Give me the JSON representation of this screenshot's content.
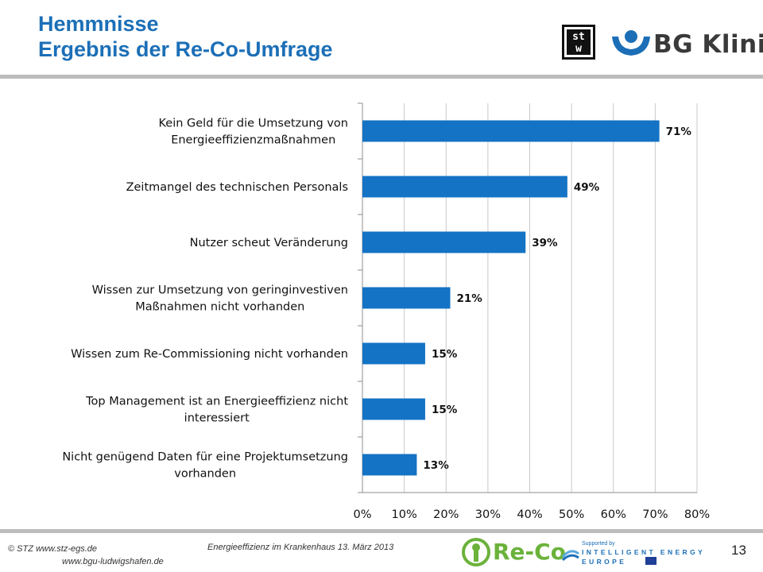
{
  "slide": {
    "title_line1": "Hemmnisse",
    "title_line2": "Ergebnis der Re-Co-Umfrage",
    "page_number": "13"
  },
  "logos": {
    "stw_text": "st w",
    "bg_klinik_text": "BG Klinik",
    "reco_text": "Re-Co",
    "iee_supported": "Supported by",
    "iee_line1": "INTELLIGENT ENERGY",
    "iee_line2": "EUROPE"
  },
  "footer": {
    "left_line1": "© STZ  www.stz-egs.de",
    "left_line2": "www.bgu-ludwigshafen.de",
    "middle": "Energieeffizienz  im Krankenhaus  13. März 2013"
  },
  "colors": {
    "title": "#1c6fb7",
    "bar": "#1473c4",
    "grid": "#c9c9c9",
    "rule": "#bcbcbc",
    "reco_green": "#6bb23b"
  },
  "chart_data": {
    "type": "bar",
    "orientation": "horizontal",
    "categories": [
      [
        "Kein Geld für die Umsetzung von",
        "Energieeffizienzmaßnahmen"
      ],
      [
        "Zeitmangel des technischen Personals"
      ],
      [
        "Nutzer scheut Veränderung"
      ],
      [
        "Wissen zur Umsetzung von geringinvestiven",
        "Maßnahmen nicht vorhanden"
      ],
      [
        "Wissen zum Re-Commissioning nicht vorhanden"
      ],
      [
        "Top Management ist an Energieeffizienz nicht",
        "interessiert"
      ],
      [
        "Nicht genügend Daten für eine Projektumsetzung",
        "vorhanden"
      ]
    ],
    "values": [
      71,
      49,
      39,
      21,
      15,
      15,
      13
    ],
    "value_labels": [
      "71%",
      "49%",
      "39%",
      "21%",
      "15%",
      "15%",
      "13%"
    ],
    "xlim": [
      0,
      80
    ],
    "x_ticks": [
      "0%",
      "10%",
      "20%",
      "30%",
      "40%",
      "50%",
      "60%",
      "70%",
      "80%"
    ],
    "grid": true,
    "legend": false
  }
}
